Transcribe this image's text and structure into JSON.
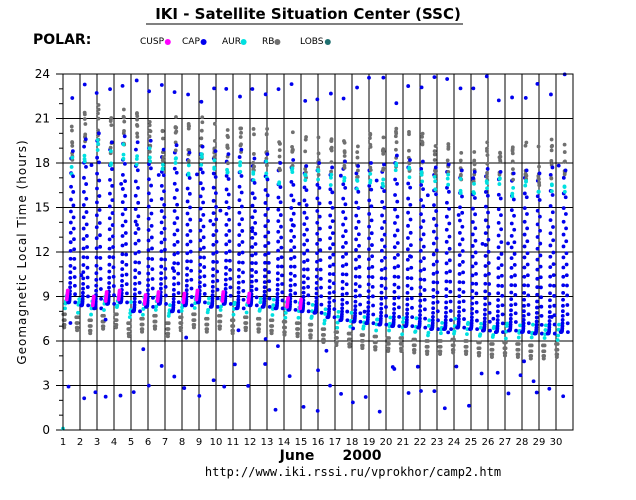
{
  "chart_data": {
    "type": "scatter",
    "title": "IKI - Satellite Situation Center (SSC)",
    "satellite": "POLAR:",
    "ylabel": "Geomagnetic  Local  Time  (hours)",
    "xlabel_month": "June",
    "xlabel_year": "2000",
    "url": "http://www.iki.rssi.ru/vprokhor/camp2.htm",
    "ylim": [
      0,
      24
    ],
    "xlim": [
      1,
      31
    ],
    "yticks": [
      "0",
      "3",
      "6",
      "9",
      "12",
      "15",
      "18",
      "21",
      "24"
    ],
    "xticks": [
      "1",
      "2",
      "3",
      "4",
      "5",
      "6",
      "7",
      "8",
      "9",
      "10",
      "11",
      "12",
      "13",
      "14",
      "15",
      "16",
      "17",
      "18",
      "19",
      "20",
      "21",
      "22",
      "23",
      "24",
      "25",
      "26",
      "27",
      "28",
      "29",
      "30"
    ],
    "grid": true,
    "legend_placement": "top",
    "legend": [
      {
        "name": "CUSP",
        "color": "#ff00ff"
      },
      {
        "name": "CAP",
        "color": "#0000ee"
      },
      {
        "name": "AUR",
        "color": "#00e0e0"
      },
      {
        "name": "RB",
        "color": "#707070"
      },
      {
        "name": "LOBS",
        "color": "#207070"
      }
    ],
    "orbit_period_days": 0.7625,
    "orbits": [
      {
        "t0": 1.0,
        "mlt_day": 8.6,
        "mlt_night": 19.8,
        "cusp": true
      },
      {
        "t0": 1.76,
        "mlt_day": 8.4,
        "mlt_night": 20.6,
        "cusp": false
      },
      {
        "t0": 2.53,
        "mlt_day": 8.2,
        "mlt_night": 21.0,
        "cusp": true
      },
      {
        "t0": 3.29,
        "mlt_day": 8.5,
        "mlt_night": 20.4,
        "cusp": true
      },
      {
        "t0": 4.05,
        "mlt_day": 8.6,
        "mlt_night": 20.8,
        "cusp": true
      },
      {
        "t0": 4.81,
        "mlt_day": 8.0,
        "mlt_night": 20.4,
        "cusp": false
      },
      {
        "t0": 5.58,
        "mlt_day": 8.3,
        "mlt_night": 20.5,
        "cusp": true
      },
      {
        "t0": 6.34,
        "mlt_day": 8.5,
        "mlt_night": 19.9,
        "cusp": true
      },
      {
        "t0": 7.1,
        "mlt_day": 8.0,
        "mlt_night": 20.2,
        "cusp": false
      },
      {
        "t0": 7.86,
        "mlt_day": 8.4,
        "mlt_night": 19.7,
        "cusp": true
      },
      {
        "t0": 8.63,
        "mlt_day": 8.6,
        "mlt_night": 20.1,
        "cusp": true
      },
      {
        "t0": 9.39,
        "mlt_day": 8.3,
        "mlt_night": 19.8,
        "cusp": false
      },
      {
        "t0": 10.15,
        "mlt_day": 8.5,
        "mlt_night": 19.6,
        "cusp": true
      },
      {
        "t0": 10.91,
        "mlt_day": 8.2,
        "mlt_night": 19.9,
        "cusp": false
      },
      {
        "t0": 11.68,
        "mlt_day": 8.4,
        "mlt_night": 19.3,
        "cusp": true
      },
      {
        "t0": 12.44,
        "mlt_day": 8.3,
        "mlt_night": 19.6,
        "cusp": false
      },
      {
        "t0": 13.2,
        "mlt_day": 8.2,
        "mlt_night": 19.0,
        "cusp": false
      },
      {
        "t0": 13.96,
        "mlt_day": 8.1,
        "mlt_night": 19.2,
        "cusp": true
      },
      {
        "t0": 14.73,
        "mlt_day": 8.0,
        "mlt_night": 18.8,
        "cusp": true
      },
      {
        "t0": 15.49,
        "mlt_day": 7.9,
        "mlt_night": 19.0,
        "cusp": false
      },
      {
        "t0": 16.25,
        "mlt_day": 7.6,
        "mlt_night": 18.7,
        "cusp": false
      },
      {
        "t0": 17.01,
        "mlt_day": 7.4,
        "mlt_night": 19.1,
        "cusp": false
      },
      {
        "t0": 17.78,
        "mlt_day": 7.3,
        "mlt_night": 18.8,
        "cusp": false
      },
      {
        "t0": 18.54,
        "mlt_day": 7.2,
        "mlt_night": 19.0,
        "cusp": false
      },
      {
        "t0": 19.3,
        "mlt_day": 7.1,
        "mlt_night": 18.9,
        "cusp": false
      },
      {
        "t0": 20.06,
        "mlt_day": 7.0,
        "mlt_night": 19.5,
        "cusp": false
      },
      {
        "t0": 20.83,
        "mlt_day": 7.0,
        "mlt_night": 19.2,
        "cusp": false
      },
      {
        "t0": 21.59,
        "mlt_day": 6.9,
        "mlt_night": 19.1,
        "cusp": false
      },
      {
        "t0": 22.35,
        "mlt_day": 6.8,
        "mlt_night": 18.7,
        "cusp": false
      },
      {
        "t0": 23.11,
        "mlt_day": 6.8,
        "mlt_night": 18.9,
        "cusp": false
      },
      {
        "t0": 23.88,
        "mlt_day": 6.9,
        "mlt_night": 18.5,
        "cusp": false
      },
      {
        "t0": 24.64,
        "mlt_day": 6.8,
        "mlt_night": 18.4,
        "cusp": false
      },
      {
        "t0": 25.4,
        "mlt_day": 6.7,
        "mlt_night": 18.6,
        "cusp": false
      },
      {
        "t0": 26.16,
        "mlt_day": 6.6,
        "mlt_night": 18.4,
        "cusp": false
      },
      {
        "t0": 26.93,
        "mlt_day": 6.7,
        "mlt_night": 18.3,
        "cusp": false
      },
      {
        "t0": 27.69,
        "mlt_day": 6.6,
        "mlt_night": 18.5,
        "cusp": false
      },
      {
        "t0": 28.45,
        "mlt_day": 6.5,
        "mlt_night": 18.3,
        "cusp": false
      },
      {
        "t0": 29.21,
        "mlt_day": 6.5,
        "mlt_night": 18.7,
        "cusp": false
      },
      {
        "t0": 29.98,
        "mlt_day": 6.6,
        "mlt_night": 18.5,
        "cusp": false
      }
    ]
  }
}
